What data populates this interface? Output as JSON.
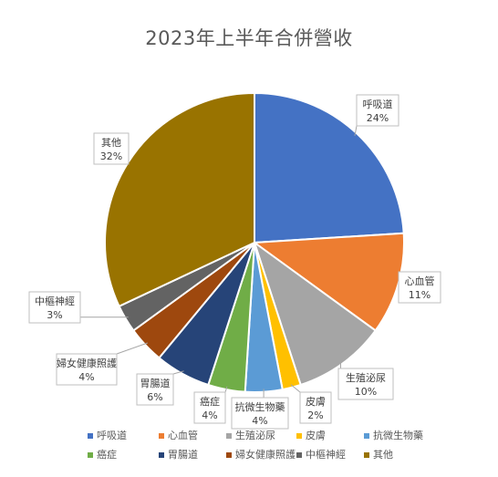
{
  "chart_data": {
    "type": "pie",
    "title": "2023年上半年合併營收",
    "categories": [
      "呼吸道",
      "心血管",
      "生殖泌尿",
      "皮膚",
      "抗微生物藥",
      "癌症",
      "胃腸道",
      "婦女健康照護",
      "中樞神經",
      "其他"
    ],
    "values": [
      24,
      11,
      10,
      2,
      4,
      4,
      6,
      4,
      3,
      32
    ],
    "labels": [
      "24%",
      "11%",
      "10%",
      "2%",
      "4%",
      "4%",
      "6%",
      "4%",
      "3%",
      "32%"
    ],
    "colors": [
      "#4472C4",
      "#ED7D31",
      "#A5A5A5",
      "#FFC000",
      "#5B9BD5",
      "#70AD47",
      "#264478",
      "#9E480E",
      "#636363",
      "#997300"
    ],
    "legend_position": "bottom",
    "start_angle": "12 o'clock, clockwise"
  }
}
